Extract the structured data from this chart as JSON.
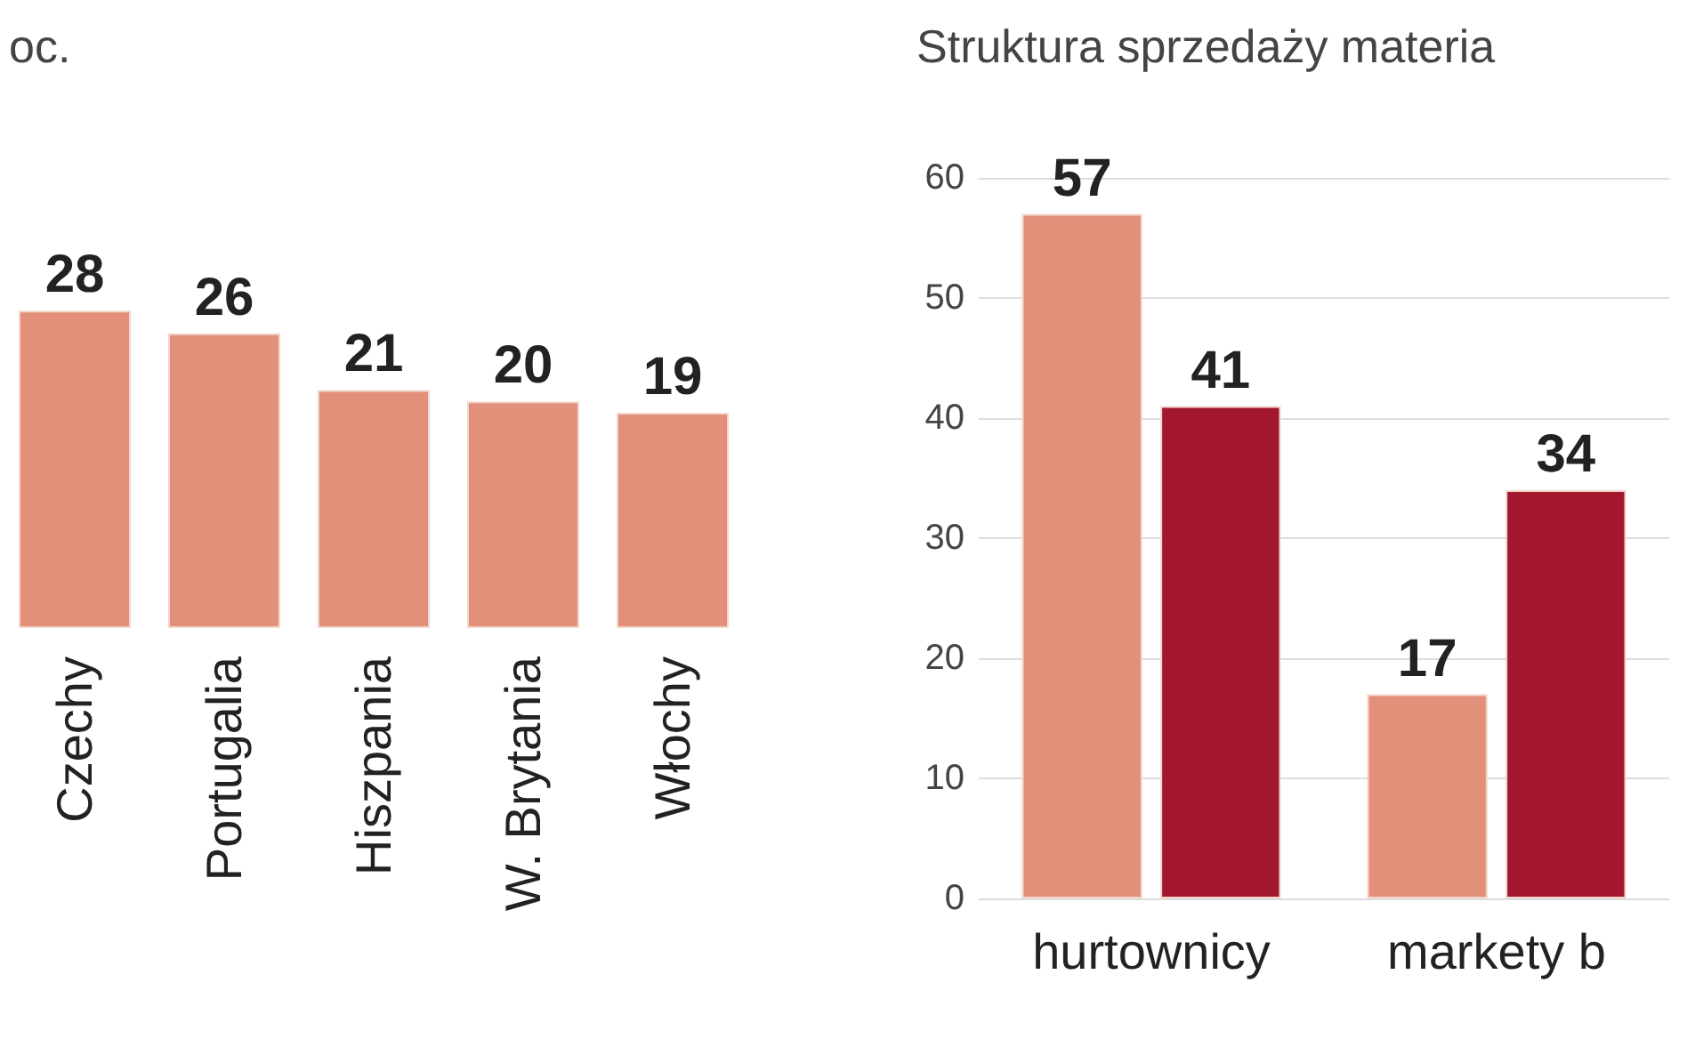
{
  "chart_data": [
    {
      "type": "bar",
      "title": "oc.",
      "categories": [
        "Czechy",
        "Portugalia",
        "Hiszpania",
        "W. Brytania",
        "Włochy"
      ],
      "values": [
        28,
        26,
        21,
        20,
        19
      ],
      "color": "#e2907a",
      "data_labels": true,
      "tick_labels": "x"
    },
    {
      "type": "bar",
      "title": "Struktura sprzedaży materia",
      "categories": [
        "hurtownicy",
        "markety b"
      ],
      "series": [
        {
          "color": "#e2907a",
          "values": [
            57,
            17
          ]
        },
        {
          "color": "#a3182f",
          "values": [
            41,
            34
          ]
        }
      ],
      "ylim": [
        0,
        60
      ],
      "yticks": [
        0,
        10,
        20,
        30,
        40,
        50,
        60
      ],
      "grid": "y",
      "data_labels": true
    }
  ]
}
